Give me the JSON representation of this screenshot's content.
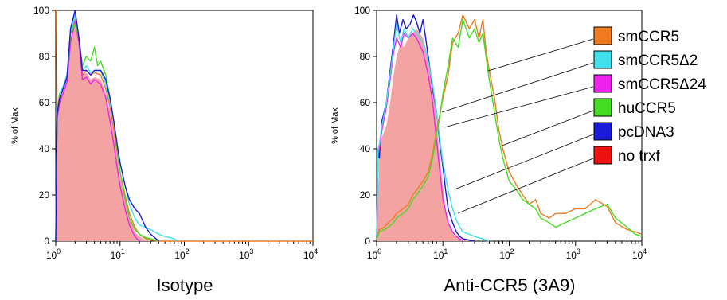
{
  "chart_data": [
    {
      "type": "area",
      "title": "Isotype",
      "ylabel": "% of Max",
      "xlabel": "",
      "x_scale": "log",
      "xlim": [
        1,
        10000
      ],
      "ylim": [
        0,
        100
      ],
      "x_ticks": [
        {
          "value": 1,
          "base": "10",
          "exp": "0"
        },
        {
          "value": 10,
          "base": "10",
          "exp": "1"
        },
        {
          "value": 100,
          "base": "10",
          "exp": "2"
        },
        {
          "value": 1000,
          "base": "10",
          "exp": "3"
        },
        {
          "value": 10000,
          "base": "10",
          "exp": "4"
        }
      ],
      "y_ticks": [
        "0",
        "20",
        "40",
        "60",
        "80",
        "100"
      ],
      "series": [
        {
          "name": "no trxf",
          "color": "#f4a3a3",
          "fill": true,
          "x": [
            1,
            1.05,
            1.15,
            1.3,
            1.5,
            1.7,
            2,
            2.3,
            2.6,
            3,
            3.5,
            4,
            5,
            6,
            7,
            8,
            9,
            10,
            12,
            14,
            17,
            20,
            25,
            30
          ],
          "y": [
            0,
            54,
            62,
            65,
            70,
            88,
            96,
            88,
            72,
            73,
            70,
            71,
            70,
            64,
            56,
            46,
            36,
            28,
            18,
            10,
            4,
            2,
            0.5,
            0
          ]
        },
        {
          "name": "smCCR5",
          "color": "#f07a20",
          "fill": false,
          "x": [
            1,
            1.02,
            1.05,
            1.15,
            1.3,
            1.5,
            1.7,
            2,
            2.3,
            2.6,
            3,
            3.5,
            4,
            5,
            6,
            7,
            8,
            9,
            10,
            12,
            14,
            17,
            20,
            25,
            30,
            40,
            100,
            1000,
            10000
          ],
          "y": [
            100,
            100,
            56,
            64,
            67,
            72,
            90,
            96,
            88,
            72,
            74,
            72,
            73,
            72,
            66,
            58,
            48,
            38,
            30,
            20,
            12,
            6,
            3,
            1,
            0.5,
            0,
            0,
            0,
            0
          ]
        },
        {
          "name": "smCCR5Δ2",
          "color": "#40e0ec",
          "fill": false,
          "x": [
            1,
            1.05,
            1.15,
            1.3,
            1.5,
            1.7,
            2,
            2.3,
            2.6,
            3,
            3.5,
            4,
            5,
            6,
            7,
            8,
            9,
            10,
            12,
            14,
            17,
            20,
            25,
            30,
            40,
            50,
            60,
            70,
            80
          ],
          "y": [
            0,
            55,
            64,
            67,
            72,
            90,
            98,
            88,
            74,
            76,
            73,
            74,
            74,
            68,
            60,
            52,
            42,
            34,
            24,
            16,
            10,
            7,
            6,
            5,
            3,
            2,
            1.5,
            1,
            0
          ]
        },
        {
          "name": "smCCR5Δ24",
          "color": "#ee22ee",
          "fill": false,
          "x": [
            1,
            1.05,
            1.15,
            1.3,
            1.5,
            1.7,
            2,
            2.3,
            2.6,
            3,
            3.5,
            4,
            5,
            6,
            7,
            8,
            9,
            10,
            12,
            14,
            17,
            20
          ],
          "y": [
            0,
            53,
            60,
            64,
            69,
            86,
            95,
            86,
            70,
            71,
            68,
            70,
            68,
            62,
            52,
            42,
            32,
            24,
            14,
            7,
            2,
            0
          ]
        },
        {
          "name": "huCCR5",
          "color": "#44dd22",
          "fill": false,
          "x": [
            1,
            1.05,
            1.15,
            1.3,
            1.5,
            1.7,
            2,
            2.3,
            2.6,
            3,
            3.5,
            4,
            4.5,
            5,
            6,
            7,
            8,
            9,
            10,
            12,
            14,
            17,
            20,
            25,
            30,
            40
          ],
          "y": [
            0,
            55,
            63,
            66,
            71,
            90,
            94,
            88,
            76,
            80,
            78,
            84,
            76,
            78,
            72,
            62,
            52,
            40,
            30,
            18,
            10,
            5,
            3,
            1.5,
            1,
            0
          ]
        },
        {
          "name": "pcDNA3",
          "color": "#1a1ad8",
          "fill": false,
          "x": [
            1,
            1.05,
            1.15,
            1.3,
            1.5,
            1.7,
            2,
            2.3,
            2.6,
            3,
            3.5,
            4,
            5,
            6,
            7,
            8,
            9,
            10,
            12,
            14,
            17,
            20,
            25,
            30,
            40
          ],
          "y": [
            0,
            55,
            62,
            66,
            71,
            92,
            100,
            88,
            74,
            74,
            72,
            74,
            74,
            70,
            62,
            52,
            42,
            34,
            24,
            18,
            14,
            12,
            6,
            3,
            0
          ]
        }
      ]
    },
    {
      "type": "area",
      "title": "Anti-CCR5 (3A9)",
      "ylabel": "% of Max",
      "xlabel": "",
      "x_scale": "log",
      "xlim": [
        1,
        10000
      ],
      "ylim": [
        0,
        100
      ],
      "x_ticks": [
        {
          "value": 1,
          "base": "10",
          "exp": "0"
        },
        {
          "value": 10,
          "base": "10",
          "exp": "1"
        },
        {
          "value": 100,
          "base": "10",
          "exp": "2"
        },
        {
          "value": 1000,
          "base": "10",
          "exp": "3"
        },
        {
          "value": 10000,
          "base": "10",
          "exp": "4"
        }
      ],
      "y_ticks": [
        "0",
        "20",
        "40",
        "60",
        "80",
        "100"
      ],
      "legend": {
        "placement": "right",
        "entries": [
          {
            "label": "smCCR5",
            "color": "#f07a20"
          },
          {
            "label": "smCCR5Δ2",
            "color": "#40e0ec"
          },
          {
            "label": "smCCR5Δ24",
            "color": "#ee22ee"
          },
          {
            "label": "huCCR5",
            "color": "#44dd22"
          },
          {
            "label": "pcDNA3",
            "color": "#1a1ad8"
          },
          {
            "label": "no trxf",
            "color": "#ee1111"
          }
        ]
      },
      "series": [
        {
          "name": "no trxf",
          "color": "#f4a3a3",
          "fill": true,
          "x": [
            1,
            1.1,
            1.2,
            1.4,
            1.6,
            1.8,
            2,
            2.3,
            2.6,
            3,
            3.5,
            4,
            5,
            6,
            7,
            8,
            9,
            10,
            11,
            12,
            14,
            16,
            18,
            20,
            25
          ],
          "y": [
            0,
            40,
            45,
            50,
            60,
            72,
            80,
            86,
            84,
            88,
            90,
            92,
            88,
            80,
            68,
            52,
            36,
            24,
            14,
            8,
            4,
            2,
            1,
            0.5,
            0
          ]
        },
        {
          "name": "pcDNA3",
          "color": "#1a1ad8",
          "fill": false,
          "x": [
            1,
            1.05,
            1.1,
            1.2,
            1.4,
            1.6,
            1.8,
            2,
            2.2,
            2.5,
            2.8,
            3.2,
            3.6,
            4,
            4.5,
            5,
            5.5,
            6,
            7,
            8,
            9,
            10,
            11,
            12,
            14,
            16,
            18,
            20,
            25,
            30
          ],
          "y": [
            2,
            40,
            36,
            52,
            60,
            74,
            86,
            98,
            90,
            96,
            92,
            94,
            98,
            95,
            90,
            96,
            88,
            80,
            66,
            56,
            42,
            32,
            22,
            14,
            8,
            4,
            2,
            1,
            0.5,
            0
          ]
        },
        {
          "name": "smCCR5Δ24",
          "color": "#ee22ee",
          "fill": false,
          "x": [
            1,
            1.05,
            1.1,
            1.2,
            1.4,
            1.6,
            1.8,
            2,
            2.3,
            2.6,
            3,
            3.5,
            4,
            5,
            6,
            7,
            8,
            9,
            10,
            12,
            14,
            16,
            18,
            20
          ],
          "y": [
            2,
            38,
            40,
            48,
            58,
            70,
            82,
            88,
            84,
            90,
            88,
            90,
            88,
            82,
            72,
            60,
            44,
            30,
            18,
            8,
            4,
            2,
            1,
            0
          ]
        },
        {
          "name": "smCCR5Δ2",
          "color": "#40e0ec",
          "fill": false,
          "x": [
            1,
            1.05,
            1.1,
            1.2,
            1.4,
            1.6,
            1.8,
            2,
            2.3,
            2.6,
            3,
            3.5,
            4,
            5,
            6,
            7,
            8,
            9,
            10,
            12,
            14,
            16,
            18,
            20,
            25,
            30,
            40,
            50
          ],
          "y": [
            2,
            40,
            42,
            50,
            60,
            72,
            84,
            94,
            86,
            92,
            88,
            92,
            90,
            86,
            78,
            68,
            56,
            44,
            34,
            22,
            14,
            9,
            6,
            4,
            3,
            2,
            1,
            0
          ]
        },
        {
          "name": "smCCR5",
          "color": "#f07a20",
          "fill": false,
          "x": [
            1,
            1.1,
            1.3,
            1.5,
            1.8,
            2,
            2.5,
            3,
            3.5,
            4,
            5,
            6,
            7,
            8,
            9,
            10,
            12,
            14,
            17,
            20,
            25,
            30,
            35,
            40,
            45,
            50,
            60,
            70,
            80,
            100,
            130,
            160,
            200,
            250,
            300,
            400,
            500,
            700,
            1000,
            1400,
            2000,
            3000,
            4000,
            6000,
            8000,
            10000
          ],
          "y": [
            2,
            5,
            6,
            8,
            10,
            12,
            14,
            16,
            20,
            22,
            26,
            30,
            38,
            48,
            55,
            62,
            72,
            86,
            90,
            98,
            92,
            96,
            88,
            96,
            82,
            74,
            62,
            48,
            40,
            30,
            24,
            20,
            16,
            18,
            12,
            10,
            12,
            12,
            14,
            14,
            18,
            15,
            8,
            5,
            4,
            3
          ]
        },
        {
          "name": "huCCR5",
          "color": "#44dd22",
          "fill": false,
          "x": [
            1,
            1.1,
            1.3,
            1.5,
            1.8,
            2,
            2.5,
            3,
            3.5,
            4,
            5,
            6,
            7,
            8,
            9,
            10,
            12,
            14,
            17,
            20,
            25,
            30,
            35,
            40,
            50,
            60,
            70,
            80,
            100,
            130,
            160,
            200,
            250,
            300,
            400,
            500,
            700,
            1000,
            1400,
            2000,
            3000,
            4000,
            6000,
            8000,
            10000
          ],
          "y": [
            1,
            4,
            5,
            6,
            8,
            10,
            12,
            14,
            18,
            20,
            24,
            28,
            36,
            46,
            54,
            64,
            76,
            88,
            84,
            96,
            88,
            92,
            86,
            90,
            70,
            56,
            44,
            36,
            26,
            22,
            18,
            16,
            14,
            10,
            8,
            6,
            8,
            10,
            12,
            14,
            16,
            10,
            6,
            3,
            2
          ]
        }
      ]
    }
  ]
}
